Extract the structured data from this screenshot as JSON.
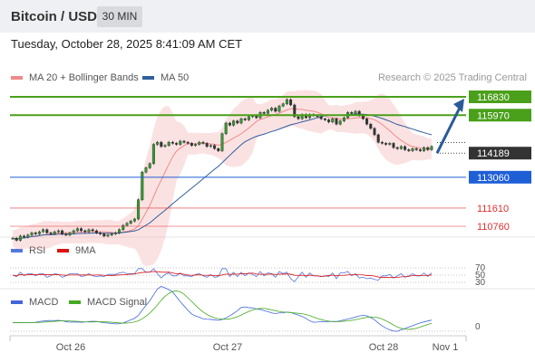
{
  "header": {
    "title": "Bitcoin / USD",
    "interval": "30 MIN"
  },
  "timestamp": "Tuesday, October 28, 2025 8:41:09 AM CET",
  "legend": {
    "bollinger": "MA 20 + Bollinger Bands",
    "ma50": "MA 50"
  },
  "copyright": "Research © 2025 Trading Central",
  "rsi_legend": {
    "rsi": "RSI",
    "ma": "9MA"
  },
  "macd_legend": {
    "macd": "MACD",
    "signal": "MACD Signal"
  },
  "colors": {
    "bollinger": "#f08a8a",
    "ma50": "#2f5f9e",
    "resistance": "#4aa01a",
    "support": "#1f5fd6",
    "target": "#e03030",
    "current": "#333333",
    "rsi": "#5577dd",
    "rsi_ma": "#dd1111",
    "macd": "#4466dd",
    "macd_signal": "#44aa22",
    "arrow": "#2a5a9a"
  },
  "chart_data": {
    "type": "candlestick",
    "series_close": [
      110200,
      110100,
      110300,
      110250,
      110350,
      110450,
      110400,
      110500,
      110600,
      110450,
      110400,
      110500,
      110550,
      110400,
      110350,
      110450,
      110550,
      110650,
      110550,
      110500,
      110600,
      110550,
      110450,
      110400,
      110300,
      110350,
      110400,
      110450,
      110600,
      110800,
      110900,
      111000,
      111100,
      112000,
      113300,
      113500,
      113700,
      114600,
      114700,
      114500,
      114550,
      114700,
      114650,
      114600,
      114750,
      114700,
      114650,
      114550,
      114600,
      114700,
      114650,
      114500,
      114550,
      114400,
      114300,
      115100,
      115600,
      115500,
      115700,
      115600,
      115800,
      115750,
      115900,
      115950,
      115850,
      116100,
      116050,
      116200,
      116300,
      116150,
      116400,
      116500,
      116700,
      116450,
      115900,
      115800,
      116000,
      115850,
      116000,
      115950,
      115900,
      115800,
      115750,
      115650,
      115800,
      115550,
      115700,
      115850,
      116100,
      116050,
      116150,
      115950,
      115800,
      115550,
      115350,
      115050,
      114700,
      114650,
      114600,
      114650,
      114450,
      114400,
      114500,
      114350,
      114300,
      114400,
      114350,
      114300,
      114450,
      114350,
      114500
    ],
    "current_price": 114189,
    "levels": {
      "resistance": [
        116830,
        115970
      ],
      "support": [
        113060
      ],
      "targets": [
        111610,
        110760
      ]
    },
    "forecast": {
      "from": 114189,
      "to": 116830,
      "direction": "up"
    },
    "x_labels": [
      "Oct 26",
      "Oct 27",
      "Oct 28",
      "Nov 1"
    ],
    "indicators": {
      "rsi": {
        "levels": [
          "70",
          "50",
          "30"
        ]
      },
      "macd": {
        "levels": [
          "0"
        ]
      }
    }
  }
}
